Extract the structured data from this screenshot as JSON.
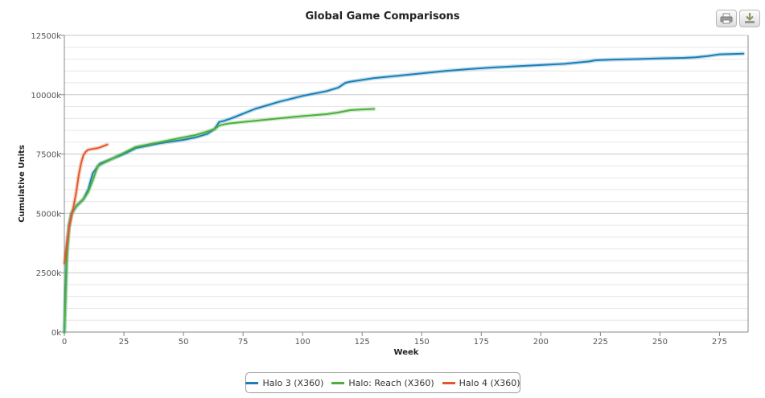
{
  "chart_data": {
    "type": "line",
    "title": "Global Game Comparisons",
    "xlabel": "Week",
    "ylabel": "Cumulative Units",
    "xlim": [
      0,
      287
    ],
    "ylim": [
      0,
      12500
    ],
    "x_ticks": [
      0,
      25,
      50,
      75,
      100,
      125,
      150,
      175,
      200,
      225,
      250,
      275
    ],
    "y_ticks": [
      0,
      2500,
      5000,
      7500,
      10000,
      12500
    ],
    "y_tick_labels": [
      "0k",
      "2500k",
      "5000k",
      "7500k",
      "10000k",
      "12500k"
    ],
    "grid": true,
    "legend_placement": "bottom",
    "series": [
      {
        "name": "Halo 3 (X360)",
        "color": "#1a7fb5",
        "x": [
          0,
          1,
          2,
          3,
          5,
          8,
          10,
          12,
          15,
          20,
          25,
          30,
          40,
          50,
          55,
          60,
          63,
          65,
          67,
          70,
          75,
          80,
          90,
          100,
          105,
          110,
          115,
          118,
          120,
          130,
          140,
          150,
          160,
          170,
          180,
          190,
          200,
          210,
          215,
          220,
          223,
          230,
          240,
          250,
          260,
          265,
          270,
          275,
          285
        ],
        "values": [
          0,
          3500,
          4500,
          5000,
          5300,
          5600,
          6000,
          6700,
          7100,
          7300,
          7500,
          7750,
          7950,
          8100,
          8200,
          8350,
          8550,
          8850,
          8900,
          9000,
          9200,
          9400,
          9700,
          9950,
          10050,
          10150,
          10300,
          10500,
          10550,
          10700,
          10800,
          10900,
          11000,
          11080,
          11150,
          11200,
          11250,
          11300,
          11350,
          11400,
          11450,
          11480,
          11500,
          11530,
          11550,
          11580,
          11630,
          11700,
          11730
        ]
      },
      {
        "name": "Halo: Reach (X360)",
        "color": "#4caf3c",
        "x": [
          0,
          1,
          2,
          3,
          5,
          8,
          10,
          12,
          14,
          16,
          20,
          25,
          30,
          40,
          50,
          55,
          60,
          63,
          65,
          67,
          70,
          80,
          90,
          100,
          110,
          115,
          120,
          125,
          130
        ],
        "values": [
          0,
          3000,
          4500,
          5000,
          5300,
          5600,
          5900,
          6400,
          7000,
          7100,
          7300,
          7550,
          7800,
          8000,
          8200,
          8300,
          8450,
          8550,
          8700,
          8750,
          8800,
          8900,
          9000,
          9100,
          9180,
          9250,
          9350,
          9380,
          9400
        ]
      },
      {
        "name": "Halo 4 (X360)",
        "color": "#e0592a",
        "x": [
          0,
          1,
          2,
          3,
          4,
          5,
          6,
          7,
          8,
          9,
          10,
          12,
          14,
          16,
          18
        ],
        "values": [
          2900,
          3700,
          4400,
          4900,
          5350,
          5900,
          6600,
          7100,
          7450,
          7600,
          7680,
          7720,
          7750,
          7820,
          7900
        ]
      }
    ]
  },
  "icons": {
    "print": "print-icon",
    "export": "download-icon"
  }
}
